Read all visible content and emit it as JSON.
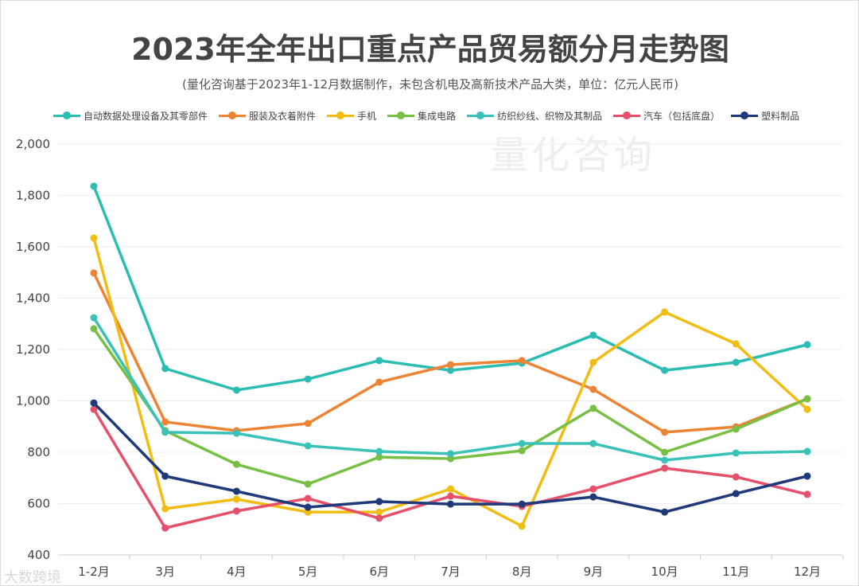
{
  "title": "2023年全年出口重点产品贸易额分月走势图",
  "subtitle": "(量化咨询基于2023年1-12月数据制作，未包含机电及高新技术产品大类，单位：亿元人民币)",
  "watermark": "量化咨询",
  "corner_watermark": "大数跨境",
  "chart_data": {
    "type": "line",
    "categories": [
      "1-2月",
      "3月",
      "4月",
      "5月",
      "6月",
      "7月",
      "8月",
      "9月",
      "10月",
      "11月",
      "12月"
    ],
    "ylim": [
      400,
      2000
    ],
    "yticks": [
      "400",
      "600",
      "800",
      "1,000",
      "1,200",
      "1,400",
      "1,600",
      "1,800",
      "2,000"
    ],
    "grid": true,
    "legend": "top",
    "series": [
      {
        "name": "自动数据处理设备及其零部件",
        "color": "#2bbdb1",
        "values": [
          1836,
          1126,
          1042,
          1085,
          1157,
          1119,
          1147,
          1256,
          1119,
          1150,
          1219
        ]
      },
      {
        "name": "服装及衣着附件",
        "color": "#ec8434",
        "values": [
          1498,
          918,
          884,
          912,
          1073,
          1141,
          1157,
          1045,
          878,
          899,
          1008
        ]
      },
      {
        "name": "手机",
        "color": "#f2bd12",
        "values": [
          1634,
          580,
          617,
          567,
          567,
          657,
          512,
          1150,
          1346,
          1222,
          967
        ]
      },
      {
        "name": "集成电路",
        "color": "#78bf45",
        "values": [
          1281,
          884,
          753,
          676,
          781,
          775,
          806,
          971,
          800,
          890,
          1008
        ]
      },
      {
        "name": "纺织纱线、织物及其制品",
        "color": "#3ac2b8",
        "values": [
          1324,
          878,
          874,
          825,
          803,
          794,
          834,
          834,
          769,
          797,
          803
        ]
      },
      {
        "name": "汽车（包括底盘）",
        "color": "#e5506a",
        "values": [
          967,
          505,
          571,
          620,
          543,
          629,
          589,
          657,
          738,
          704,
          636
        ]
      },
      {
        "name": "塑料制品",
        "color": "#1f3a7a",
        "values": [
          992,
          707,
          648,
          586,
          608,
          598,
          598,
          626,
          567,
          639,
          707
        ]
      }
    ]
  }
}
